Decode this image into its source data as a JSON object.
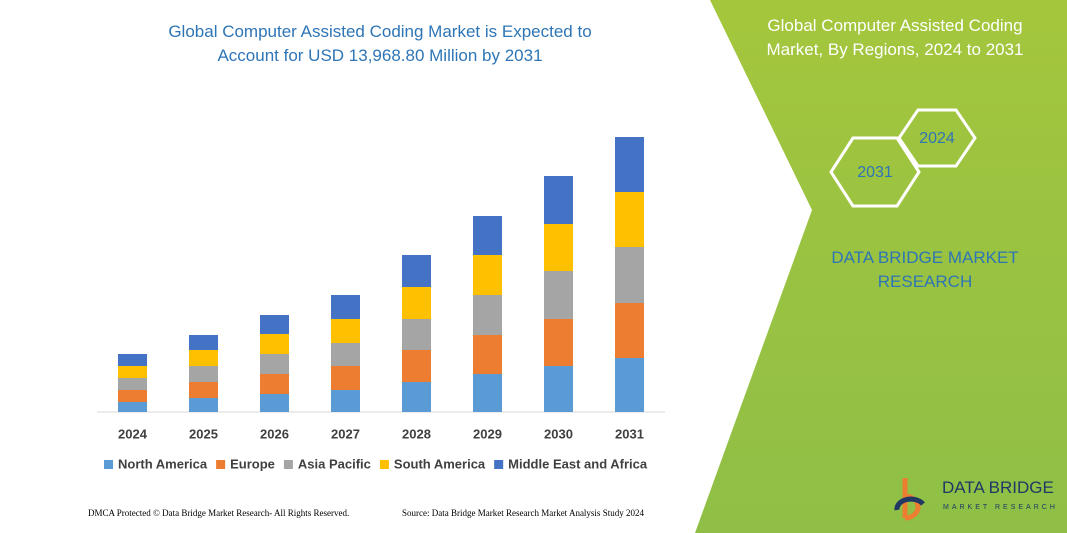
{
  "chart_data": {
    "type": "stacked_bar",
    "title": "Global Computer Assisted Coding Market is Expected to Account for USD 13,968.80 Million by 2031",
    "categories": [
      "2024",
      "2025",
      "2026",
      "2027",
      "2028",
      "2029",
      "2030",
      "2031"
    ],
    "series": [
      {
        "name": "North America",
        "color": "#5b9bd5",
        "values": [
          10,
          14,
          18,
          22,
          30,
          38,
          46,
          54
        ]
      },
      {
        "name": "Europe",
        "color": "#ed7d31",
        "values": [
          12,
          16,
          20,
          24,
          32,
          39,
          47,
          55
        ]
      },
      {
        "name": "Asia Pacific",
        "color": "#a5a5a5",
        "values": [
          12,
          16,
          20,
          23,
          31,
          40,
          48,
          56
        ]
      },
      {
        "name": "South America",
        "color": "#ffc000",
        "values": [
          12,
          16,
          20,
          24,
          32,
          40,
          47,
          55
        ]
      },
      {
        "name": "Middle East and Africa",
        "color": "#4472c4",
        "values": [
          12,
          15,
          19,
          24,
          32,
          39,
          48,
          55
        ]
      }
    ]
  },
  "panel": {
    "title": "Global Computer Assisted Coding Market, By Regions, 2024 to 2031",
    "hex_labels": [
      "2024",
      "2031"
    ],
    "brand": "DATA BRIDGE MARKET RESEARCH"
  },
  "footer": {
    "dmca": "DMCA Protected © Data Bridge Market Research- All Rights Reserved.",
    "source": "Source: Data Bridge Market Research Market Analysis Study 2024"
  },
  "logo": {
    "name": "DATA BRIDGE",
    "tagline": "MARKET RESEARCH"
  }
}
